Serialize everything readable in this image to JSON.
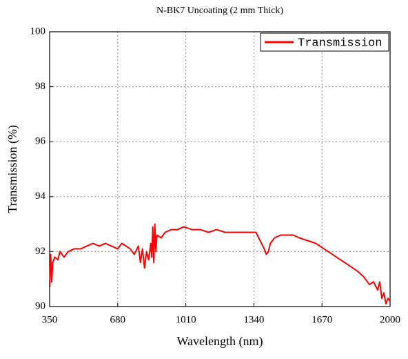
{
  "chart_data": {
    "type": "line",
    "title": "N-BK7 Uncoating (2 mm  Thick)",
    "x_label": "Wavelength (nm)",
    "y_label": "Transmission (%)",
    "x": [
      350,
      355,
      360,
      365,
      375,
      390,
      400,
      420,
      440,
      470,
      500,
      530,
      560,
      590,
      620,
      650,
      680,
      700,
      720,
      740,
      760,
      780,
      790,
      800,
      810,
      820,
      830,
      840,
      845,
      850,
      855,
      860,
      865,
      870,
      890,
      910,
      940,
      970,
      1000,
      1040,
      1080,
      1120,
      1160,
      1200,
      1240,
      1280,
      1320,
      1350,
      1370,
      1390,
      1400,
      1410,
      1420,
      1440,
      1470,
      1500,
      1530,
      1560,
      1600,
      1640,
      1680,
      1720,
      1760,
      1800,
      1840,
      1870,
      1900,
      1920,
      1940,
      1950,
      1960,
      1970,
      1980,
      1990,
      2000
    ],
    "series": [
      {
        "name": "Transmission",
        "color": "#ff0000",
        "values": [
          90.7,
          91.9,
          90.9,
          91.6,
          91.8,
          91.7,
          92.0,
          91.8,
          92.0,
          92.1,
          92.1,
          92.2,
          92.3,
          92.2,
          92.3,
          92.2,
          92.1,
          92.3,
          92.2,
          92.1,
          91.9,
          92.2,
          91.6,
          92.1,
          91.4,
          92.0,
          91.7,
          92.3,
          91.8,
          92.9,
          91.6,
          93.0,
          92.0,
          92.6,
          92.5,
          92.7,
          92.8,
          92.8,
          92.9,
          92.8,
          92.8,
          92.7,
          92.8,
          92.7,
          92.7,
          92.7,
          92.7,
          92.7,
          92.4,
          92.1,
          91.9,
          92.0,
          92.3,
          92.5,
          92.6,
          92.6,
          92.6,
          92.5,
          92.4,
          92.3,
          92.1,
          91.9,
          91.7,
          91.5,
          91.3,
          91.1,
          90.8,
          90.9,
          90.6,
          90.9,
          90.3,
          90.5,
          90.1,
          90.3,
          90.2
        ]
      }
    ],
    "xlim": [
      350,
      2000
    ],
    "xticks": [
      350,
      680,
      1010,
      1340,
      1670,
      2000
    ],
    "ylim": [
      90,
      100
    ],
    "yticks": [
      90,
      92,
      94,
      96,
      98,
      100
    ],
    "grid": true,
    "legend": "upper right"
  }
}
